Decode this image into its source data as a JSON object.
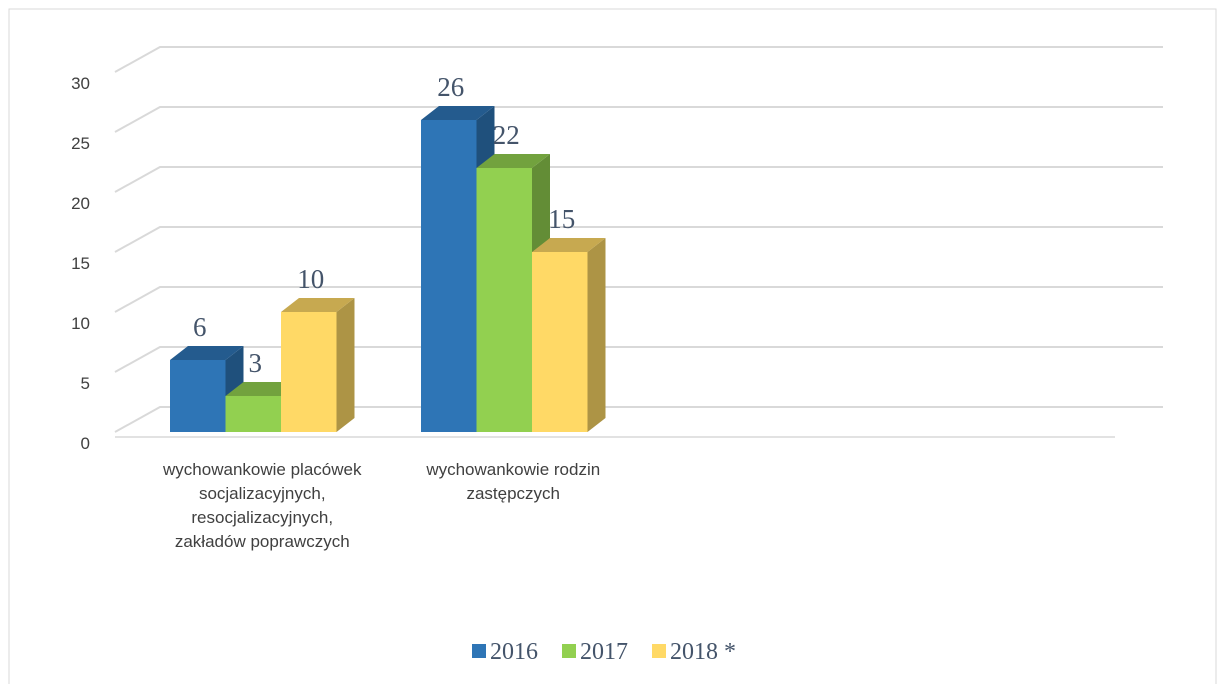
{
  "chart_data": {
    "type": "bar3d",
    "categories": [
      "wychowankowie placówek socjalizacyjnych, resocjalizacyjnych, zakładów poprawczych",
      "wychowankowie rodzin zastępczych"
    ],
    "series": [
      {
        "name": "2016",
        "color": "#2e75b6",
        "values": [
          6,
          26
        ]
      },
      {
        "name": "2017",
        "color": "#92d050",
        "values": [
          3,
          22
        ]
      },
      {
        "name": "2018 *",
        "color": "#ffd966",
        "values": [
          10,
          15
        ]
      }
    ],
    "ylim": [
      0,
      30
    ],
    "yticks": [
      0,
      5,
      10,
      15,
      20,
      25,
      30
    ],
    "grid": true,
    "legend": "bottom"
  }
}
